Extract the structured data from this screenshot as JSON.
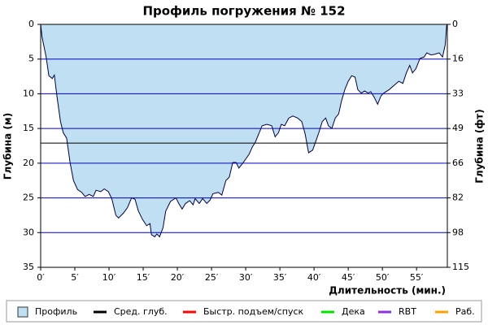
{
  "chart_data": {
    "type": "area",
    "title": "Профиль погружения № 152",
    "y_label": "Глубина (м)",
    "y2_label": "Глубина (фт)",
    "x_label": "Длительность (мин.)",
    "inverted_y": true,
    "grid": true,
    "color": "#bfe0f2",
    "line_color": "#000040",
    "grid_color": "#0000c0",
    "x": [
      0,
      0.2,
      0.8,
      1.2,
      1.7,
      2.0,
      2.4,
      2.9,
      3.3,
      3.8,
      4.3,
      4.8,
      5.4,
      6.0,
      6.5,
      7.1,
      7.7,
      8.1,
      8.8,
      9.3,
      9.9,
      10.4,
      11.0,
      11.4,
      12.1,
      12.7,
      13.3,
      13.8,
      14.3,
      14.9,
      15.5,
      16.0,
      16.2,
      16.7,
      17.0,
      17.4,
      17.9,
      18.3,
      19.0,
      19.8,
      20.2,
      20.7,
      21.2,
      21.8,
      22.3,
      22.6,
      23.2,
      23.7,
      24.3,
      24.8,
      25.2,
      26.0,
      26.5,
      27.1,
      27.6,
      28.1,
      28.6,
      29.0,
      29.5,
      30.0,
      30.5,
      31.0,
      31.4,
      31.9,
      32.4,
      33.1,
      33.8,
      34.3,
      34.8,
      35.2,
      35.7,
      36.3,
      36.9,
      37.6,
      38.2,
      38.7,
      39.2,
      39.8,
      40.2,
      40.7,
      41.2,
      41.7,
      42.1,
      42.6,
      43.1,
      43.6,
      44.0,
      44.5,
      45.0,
      45.5,
      46.0,
      46.4,
      46.9,
      47.4,
      47.9,
      48.3,
      48.8,
      49.3,
      49.8,
      50.2,
      51.0,
      51.7,
      52.4,
      53.0,
      53.5,
      54.0,
      54.4,
      54.9,
      55.5,
      56.1,
      56.5,
      57.1,
      57.7,
      58.3,
      58.8,
      59.2,
      59.4,
      59.5
    ],
    "values": [
      0,
      1.8,
      4.7,
      7.4,
      7.8,
      7.3,
      10.5,
      14,
      15.6,
      16.4,
      19.9,
      22.5,
      23.8,
      24.2,
      24.8,
      24.5,
      24.8,
      23.9,
      24.1,
      23.7,
      24.1,
      25.1,
      27.5,
      27.9,
      27.2,
      26.4,
      25,
      25.2,
      26.9,
      28.1,
      29,
      28.7,
      30.3,
      30.6,
      30.2,
      30.6,
      29.3,
      26.9,
      25.5,
      25,
      25.8,
      26.6,
      25.8,
      25.4,
      26,
      25.1,
      25.8,
      25.1,
      25.8,
      25.3,
      24.4,
      24.2,
      24.6,
      22.5,
      22,
      19.9,
      19.9,
      20.7,
      20.1,
      19.4,
      18.7,
      17.6,
      17,
      15.8,
      14.6,
      14.4,
      14.6,
      16.2,
      15.6,
      14.4,
      14.6,
      13.5,
      13.2,
      13.5,
      14,
      15.8,
      18.5,
      18.1,
      17,
      15.6,
      14,
      13.5,
      14.6,
      15,
      13.5,
      12.9,
      11.1,
      9.4,
      8.2,
      7.4,
      7.6,
      9.4,
      9.9,
      9.6,
      9.9,
      9.7,
      10.5,
      11.5,
      10.3,
      9.9,
      9.4,
      8.8,
      8.2,
      8.5,
      7,
      5.9,
      7,
      6.4,
      4.9,
      4.7,
      4.1,
      4.4,
      4.3,
      4.1,
      4.7,
      2.9,
      0.2,
      0
    ],
    "average_depth": 17.1,
    "xlim": [
      0,
      59.5
    ],
    "xticks": [
      {
        "value": 0,
        "label": "0′"
      },
      {
        "value": 5,
        "label": "5′"
      },
      {
        "value": 10,
        "label": "10′"
      },
      {
        "value": 15,
        "label": "15′"
      },
      {
        "value": 20,
        "label": "20′"
      },
      {
        "value": 25,
        "label": "25′"
      },
      {
        "value": 30,
        "label": "30′"
      },
      {
        "value": 35,
        "label": "35′"
      },
      {
        "value": 40,
        "label": "40′"
      },
      {
        "value": 45,
        "label": "45′"
      },
      {
        "value": 50,
        "label": "50′"
      },
      {
        "value": 55,
        "label": "55′"
      }
    ],
    "ylim": [
      0,
      35
    ],
    "yticks": [
      0,
      5,
      10,
      15,
      20,
      25,
      30,
      35
    ],
    "y2lim": [
      0,
      114.8
    ],
    "y2ticks": [
      0,
      {
        "value": 16.4,
        "label": "16"
      },
      {
        "value": 32.8,
        "label": "33"
      },
      {
        "value": 49.2,
        "label": "49"
      },
      {
        "value": 65.6,
        "label": "66"
      },
      82,
      {
        "value": 98.4,
        "label": "98"
      },
      {
        "value": 114.8,
        "label": "115"
      }
    ],
    "legend": [
      {
        "name": "Профиль",
        "color": "#bfe0f2",
        "style": "box"
      },
      {
        "name": "Сред. глуб.",
        "color": "#000000",
        "style": "line"
      },
      {
        "name": "Быстр. подъем/спуск",
        "color": "#ff0000",
        "style": "line"
      },
      {
        "name": "Дека",
        "color": "#00e000",
        "style": "line"
      },
      {
        "name": "RBT",
        "color": "#9030e0",
        "style": "line"
      },
      {
        "name": "Раб.",
        "color": "#ffa000",
        "style": "line"
      }
    ]
  }
}
